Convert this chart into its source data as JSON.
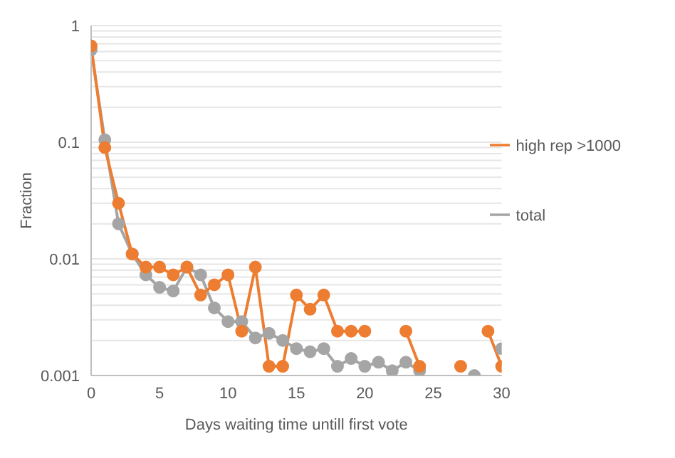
{
  "chart_data": {
    "type": "line",
    "xlabel": "Days waiting time untill first vote",
    "ylabel": "Fraction",
    "x": [
      0,
      1,
      2,
      3,
      4,
      5,
      6,
      7,
      8,
      9,
      10,
      11,
      12,
      13,
      14,
      15,
      16,
      17,
      18,
      19,
      20,
      21,
      22,
      23,
      24,
      25,
      26,
      27,
      28,
      29,
      30
    ],
    "series": [
      {
        "name": "total",
        "color": "#a5a5a5",
        "values": [
          0.62,
          0.105,
          0.02,
          0.011,
          0.0073,
          0.0057,
          0.0053,
          0.0085,
          0.0073,
          0.0038,
          0.0029,
          0.0029,
          0.0021,
          0.0023,
          0.002,
          0.0017,
          0.0016,
          0.0017,
          0.0012,
          0.0014,
          0.0012,
          0.0013,
          0.0011,
          0.0013,
          0.0011,
          null,
          null,
          null,
          0.001,
          null,
          0.0017
        ]
      },
      {
        "name": "high rep >1000",
        "color": "#ed7d31",
        "values": [
          0.67,
          0.09,
          0.03,
          0.011,
          0.0085,
          0.0085,
          0.0073,
          0.0085,
          0.0049,
          0.006,
          0.0073,
          0.0024,
          0.0085,
          0.0012,
          0.0012,
          0.0049,
          0.0037,
          0.0049,
          0.0024,
          0.0024,
          0.0024,
          null,
          null,
          0.0024,
          0.0012,
          null,
          null,
          0.0012,
          null,
          0.0024,
          0.0012
        ]
      }
    ],
    "log": "y",
    "xlim": [
      0,
      30
    ],
    "xticks": [
      0,
      5,
      10,
      15,
      20,
      25,
      30
    ],
    "ylim": [
      0.001,
      1
    ],
    "yticks": [
      0.001,
      {
        "value": 0.002,
        "label": null
      },
      {
        "value": 0.003,
        "label": null
      },
      {
        "value": 0.004,
        "label": null
      },
      {
        "value": 0.005,
        "label": null
      },
      {
        "value": 0.006,
        "label": null
      },
      {
        "value": 0.007,
        "label": null
      },
      {
        "value": 0.008,
        "label": null
      },
      {
        "value": 0.009,
        "label": null
      },
      0.01,
      {
        "value": 0.02,
        "label": null
      },
      {
        "value": 0.03,
        "label": null
      },
      {
        "value": 0.04,
        "label": null
      },
      {
        "value": 0.05,
        "label": null
      },
      {
        "value": 0.06,
        "label": null
      },
      {
        "value": 0.07,
        "label": null
      },
      {
        "value": 0.08,
        "label": null
      },
      {
        "value": 0.09,
        "label": null
      },
      0.1,
      {
        "value": 0.2,
        "label": null
      },
      {
        "value": 0.3,
        "label": null
      },
      {
        "value": 0.4,
        "label": null
      },
      {
        "value": 0.5,
        "label": null
      },
      {
        "value": 0.6,
        "label": null
      },
      {
        "value": 0.7,
        "label": null
      },
      {
        "value": 0.8,
        "label": null
      },
      {
        "value": 0.9,
        "label": null
      },
      1
    ],
    "grid": "y",
    "legend": "right",
    "marker": "circle",
    "line_style": "solid"
  }
}
